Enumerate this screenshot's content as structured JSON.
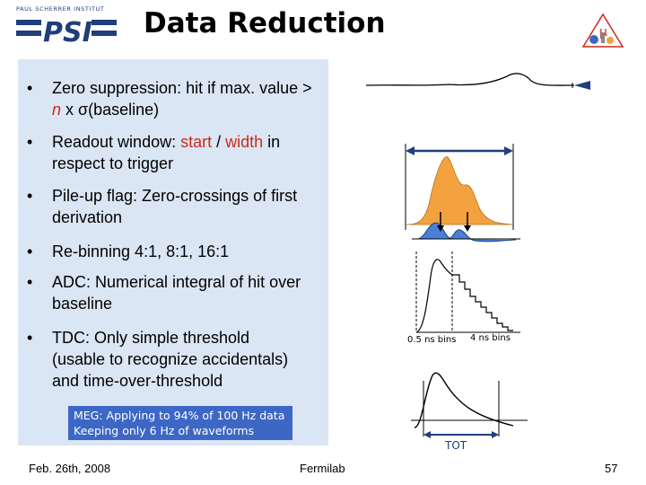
{
  "header": {
    "logo_caption": "PAUL SCHERRER INSTITUT",
    "logo_text": "PSI",
    "title": "Data Reduction"
  },
  "bullets": {
    "b1": {
      "dot": "•",
      "pre": "Zero suppression: hit if max. value > ",
      "n": "n",
      "post": " x σ(baseline)"
    },
    "b2": {
      "dot": "•",
      "pre": "Readout window: ",
      "start": "start",
      "mid": " / ",
      "width": "width",
      "post": " in respect to trigger"
    },
    "b3": {
      "dot": "•",
      "text": "Pile-up flag: Zero-crossings of first derivation"
    },
    "b4": {
      "dot": "•",
      "text": "Re-binning 4:1, 8:1, 16:1"
    },
    "b5": {
      "dot": "•",
      "text": "ADC: Numerical integral of hit over baseline"
    },
    "b6": {
      "dot": "•",
      "text": "TDC: Only simple threshold (usable to recognize accidentals) and time-over-threshold"
    }
  },
  "note": {
    "line1": "MEG: Applying to 94% of 100 Hz data",
    "line2": "Keeping only 6 Hz of waveforms"
  },
  "figures": {
    "bins_label_left": "0.5 ns bins",
    "bins_label_right": "4 ns bins",
    "tot_label": "TOT"
  },
  "footer": {
    "date": "Feb. 26th, 2008",
    "venue": "Fermilab",
    "page": "57"
  },
  "colors": {
    "panel": "#dbe6f4",
    "note_bg": "#3d67c4",
    "orange": "#f3a23f",
    "blue": "#4a7fd8",
    "red": "#cc2a1a",
    "navy": "#1f3e7a"
  }
}
